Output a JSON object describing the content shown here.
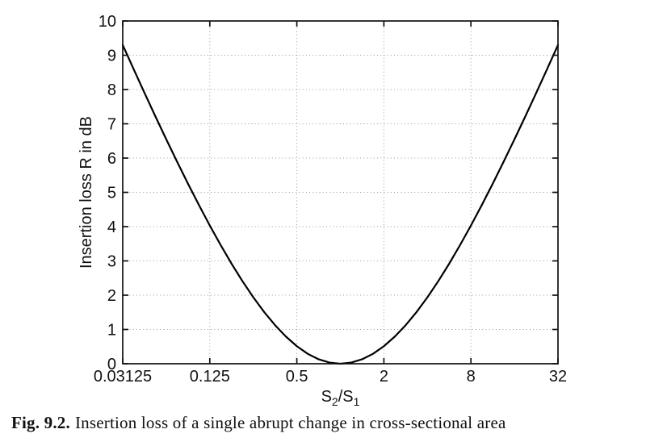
{
  "figure": {
    "caption_label": "Fig. 9.2.",
    "caption_text": "Insertion loss of a single abrupt change in cross-sectional area"
  },
  "chart_data": {
    "type": "line",
    "title": "",
    "xlabel": "S2/S1",
    "xlabel_runs": [
      {
        "text": "S",
        "sub": false
      },
      {
        "text": "2",
        "sub": true
      },
      {
        "text": "/S",
        "sub": false
      },
      {
        "text": "1",
        "sub": true
      }
    ],
    "ylabel": "Insertion loss R in dB",
    "x_scale": "log2",
    "xlim": [
      0.03125,
      32
    ],
    "ylim": [
      0,
      10
    ],
    "x_ticks": [
      0.03125,
      0.125,
      0.5,
      2,
      8,
      32
    ],
    "x_tick_labels": [
      "0.03125",
      "0.125",
      "0.5",
      "2",
      "8",
      "32"
    ],
    "y_ticks": [
      0,
      1,
      2,
      3,
      4,
      5,
      6,
      7,
      8,
      9,
      10
    ],
    "y_tick_labels": [
      "0",
      "1",
      "2",
      "3",
      "4",
      "5",
      "6",
      "7",
      "8",
      "9",
      "10"
    ],
    "x_gridlines": [
      0.125,
      0.5,
      2,
      8
    ],
    "y_gridlines": [
      1,
      2,
      3,
      4,
      5,
      6,
      7,
      8,
      9
    ],
    "grid_style": "dotted",
    "legend": "none",
    "line_color": "#000000",
    "grid_color": "#9a9a9a",
    "frame_color": "#111111",
    "series": [
      {
        "name": "insertion-loss-curve",
        "formula": "R = 10*log10((1+r)^2/(4r)),  r = S2/S1",
        "points": [
          [
            0.03125,
            9.298
          ],
          [
            0.037163,
            8.596
          ],
          [
            0.044194,
            7.901
          ],
          [
            0.052556,
            7.218
          ],
          [
            0.0625,
            6.547
          ],
          [
            0.074325,
            5.891
          ],
          [
            0.088388,
            5.251
          ],
          [
            0.105112,
            4.631
          ],
          [
            0.125,
            4.033
          ],
          [
            0.148651,
            3.462
          ],
          [
            0.176777,
            2.918
          ],
          [
            0.210224,
            2.41
          ],
          [
            0.25,
            1.938
          ],
          [
            0.297302,
            1.508
          ],
          [
            0.353553,
            1.124
          ],
          [
            0.420448,
            0.791
          ],
          [
            0.5,
            0.512
          ],
          [
            0.594604,
            0.29
          ],
          [
            0.707107,
            0.13
          ],
          [
            0.840896,
            0.033
          ],
          [
            1,
            0
          ],
          [
            1.189207,
            0.033
          ],
          [
            1.414214,
            0.13
          ],
          [
            1.681793,
            0.29
          ],
          [
            2,
            0.512
          ],
          [
            2.378414,
            0.791
          ],
          [
            2.828427,
            1.124
          ],
          [
            3.363586,
            1.508
          ],
          [
            4,
            1.938
          ],
          [
            4.756828,
            2.41
          ],
          [
            5.656854,
            2.918
          ],
          [
            6.727171,
            3.462
          ],
          [
            8,
            4.033
          ],
          [
            9.513657,
            4.631
          ],
          [
            11.313708,
            5.251
          ],
          [
            13.454343,
            5.891
          ],
          [
            16,
            6.547
          ],
          [
            19.027314,
            7.218
          ],
          [
            22.627417,
            7.901
          ],
          [
            26.908685,
            8.596
          ],
          [
            32,
            9.298
          ]
        ]
      }
    ]
  }
}
